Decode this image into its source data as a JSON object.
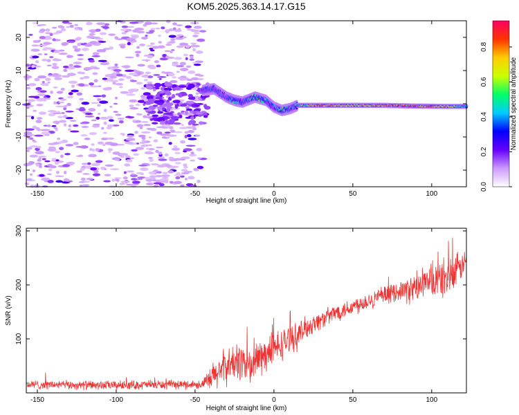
{
  "title": "KOM5.2025.363.14.17.G15",
  "chart_data": [
    {
      "type": "heatmap",
      "xlabel": "Height of straight line (km)",
      "ylabel": "Frequency (Hz)",
      "xlim": [
        -157,
        122
      ],
      "ylim": [
        -25,
        25
      ],
      "xticks": [
        -150,
        -100,
        -50,
        0,
        50,
        100
      ],
      "yticks": [
        -20,
        -10,
        0,
        10,
        20
      ],
      "colorbar": {
        "label": "Normalized spectral amplitude",
        "ticks": [
          0.0,
          0.2,
          0.4,
          0.6,
          0.8
        ],
        "tick_labels": [
          "0.0",
          "0.2",
          "0.4",
          "0.6",
          "0.8"
        ],
        "range": [
          0,
          0.95
        ],
        "colors": [
          "#ffffff",
          "#cc99ff",
          "#6600ff",
          "#0000ff",
          "#00ccff",
          "#00ff66",
          "#ccff00",
          "#ffcc00",
          "#ff3300",
          "#ff0066"
        ]
      },
      "noise_region_km": [
        -157,
        -45
      ],
      "noise_amplitude": 0.15,
      "ridge": [
        {
          "x": -45,
          "f": 4.0,
          "a": 0.35
        },
        {
          "x": -38,
          "f": 4.5,
          "a": 0.35
        },
        {
          "x": -30,
          "f": 2.0,
          "a": 0.3
        },
        {
          "x": -25,
          "f": 1.0,
          "a": 0.55
        },
        {
          "x": -20,
          "f": 0.5,
          "a": 0.35
        },
        {
          "x": -12,
          "f": 2.0,
          "a": 0.55
        },
        {
          "x": -5,
          "f": 1.0,
          "a": 0.45
        },
        {
          "x": 0,
          "f": -1.0,
          "a": 0.35
        },
        {
          "x": 5,
          "f": -2.0,
          "a": 0.6
        },
        {
          "x": 10,
          "f": -1.5,
          "a": 0.4
        },
        {
          "x": 15,
          "f": -0.5,
          "a": 0.45
        },
        {
          "x": 30,
          "f": -0.5,
          "a": 0.85
        },
        {
          "x": 50,
          "f": -0.5,
          "a": 0.7
        },
        {
          "x": 70,
          "f": -0.5,
          "a": 0.75
        },
        {
          "x": 90,
          "f": -0.7,
          "a": 0.85
        },
        {
          "x": 110,
          "f": -0.8,
          "a": 0.75
        },
        {
          "x": 122,
          "f": -0.8,
          "a": 0.4
        }
      ]
    },
    {
      "type": "line",
      "xlabel": "Height of straight line (km)",
      "ylabel": "SNR (v/v)",
      "xlim": [
        -157,
        122
      ],
      "ylim": [
        0,
        305
      ],
      "xticks": [
        -150,
        -100,
        -50,
        0,
        50,
        100
      ],
      "yticks": [
        100,
        200,
        300
      ],
      "color": "#ee3333",
      "series": [
        {
          "name": "SNR",
          "x": [
            -157,
            -140,
            -120,
            -100,
            -80,
            -60,
            -45,
            -40,
            -35,
            -30,
            -25,
            -20,
            -15,
            -10,
            -5,
            0,
            5,
            10,
            15,
            20,
            30,
            40,
            50,
            60,
            70,
            80,
            85,
            90,
            100,
            110,
            115,
            120,
            122
          ],
          "y": [
            15,
            15,
            14,
            14,
            15,
            15,
            16,
            25,
            40,
            50,
            55,
            60,
            45,
            65,
            70,
            80,
            90,
            100,
            105,
            120,
            135,
            150,
            160,
            172,
            180,
            190,
            190,
            195,
            205,
            215,
            220,
            240,
            245
          ],
          "noise": [
            10,
            10,
            10,
            10,
            10,
            10,
            10,
            30,
            40,
            40,
            40,
            45,
            45,
            45,
            40,
            40,
            35,
            30,
            30,
            25,
            20,
            20,
            20,
            20,
            20,
            20,
            30,
            30,
            40,
            45,
            45,
            25,
            25
          ]
        }
      ]
    }
  ]
}
